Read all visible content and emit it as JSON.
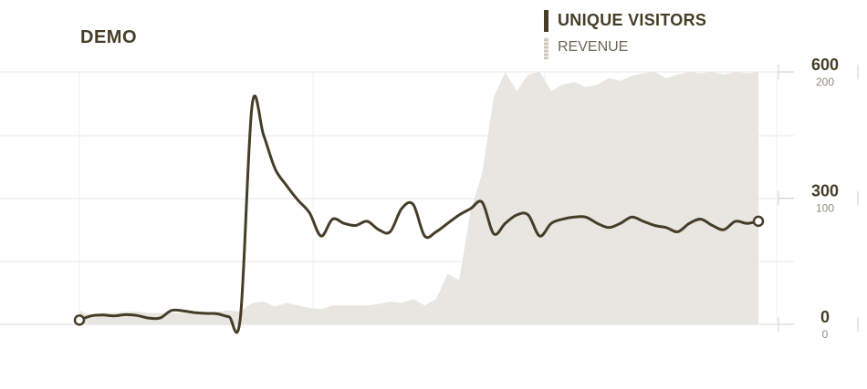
{
  "title": "DEMO",
  "legend": {
    "series1": "UNIQUE VISITORS",
    "series2": "REVENUE"
  },
  "colors": {
    "line": "#463d28",
    "area": "#e7e6e1",
    "grid": "#e8e8e8",
    "tick_major": "#463d28",
    "tick_minor": "#8f8a7c"
  },
  "chart_data": {
    "type": "line",
    "grid": true,
    "legend_position": "top-right",
    "x_points": 60,
    "y_axis_primary": {
      "ticks": [
        0,
        300,
        600
      ],
      "tick_labels": [
        "0",
        "300",
        "600"
      ],
      "range": [
        0,
        600
      ]
    },
    "y_axis_secondary": {
      "ticks": [
        0,
        100,
        200
      ],
      "tick_labels": [
        "0",
        "100",
        "200"
      ],
      "range": [
        0,
        200
      ]
    },
    "series": [
      {
        "name": "UNIQUE VISITORS",
        "kind": "line",
        "axis": "primary",
        "values": [
          10,
          20,
          22,
          20,
          23,
          21,
          15,
          15,
          33,
          32,
          28,
          26,
          25,
          18,
          18,
          520,
          450,
          370,
          330,
          295,
          265,
          210,
          250,
          240,
          235,
          245,
          225,
          220,
          275,
          285,
          210,
          220,
          240,
          260,
          275,
          290,
          215,
          240,
          260,
          260,
          210,
          240,
          250,
          255,
          255,
          240,
          230,
          240,
          255,
          245,
          235,
          230,
          220,
          240,
          250,
          235,
          225,
          245,
          240,
          245
        ]
      },
      {
        "name": "REVENUE",
        "kind": "area",
        "axis": "secondary",
        "values": [
          11,
          7,
          9,
          9,
          10,
          10,
          9,
          9,
          9,
          9,
          9,
          9,
          10,
          11,
          10,
          17,
          18,
          14,
          17,
          15,
          13,
          12,
          15,
          15,
          15,
          15,
          16,
          18,
          17,
          20,
          15,
          20,
          40,
          35,
          90,
          120,
          180,
          200,
          185,
          198,
          200,
          185,
          190,
          192,
          188,
          190,
          195,
          193,
          197,
          199,
          200,
          195,
          198,
          200,
          199,
          200,
          198,
          200,
          199,
          200
        ]
      }
    ]
  }
}
